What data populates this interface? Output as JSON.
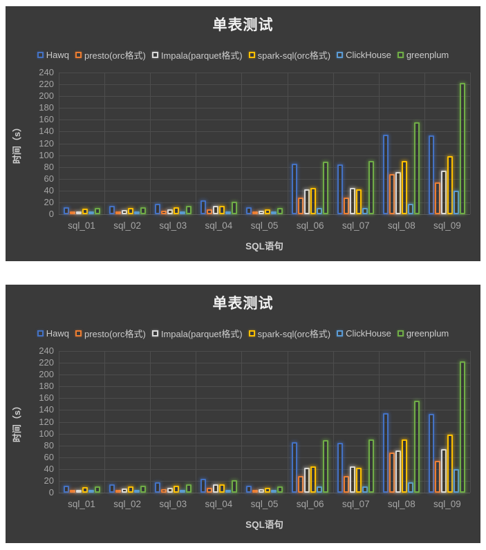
{
  "page": {
    "background": "#FFFFFF",
    "panel_background": "#3A3A3A"
  },
  "chart_data": [
    {
      "type": "bar",
      "title": "单表测试",
      "xlabel": "SQL语句",
      "ylabel": "时间（s）",
      "categories": [
        "sql_01",
        "sql_02",
        "sql_03",
        "sql_04",
        "sql_05",
        "sql_06",
        "sql_07",
        "sql_08",
        "sql_09"
      ],
      "series": [
        {
          "name": "Hawq",
          "color": "#4472C4",
          "values": [
            12,
            14,
            18,
            24,
            12,
            86,
            84,
            135,
            134
          ]
        },
        {
          "name": "presto(orc格式)",
          "color": "#ED7D31",
          "values": [
            4,
            5,
            6,
            8,
            3,
            28,
            28,
            68,
            54
          ]
        },
        {
          "name": "Impala(parquet格式)",
          "color": "#D9D9D9",
          "values": [
            5,
            7,
            8,
            14,
            6,
            42,
            44,
            72,
            74
          ]
        },
        {
          "name": "spark-sql(orc格式)",
          "color": "#FFC000",
          "values": [
            9,
            11,
            12,
            14,
            8,
            44,
            42,
            90,
            98
          ]
        },
        {
          "name": "ClickHouse",
          "color": "#5B9BD5",
          "values": [
            4,
            5,
            4,
            3,
            5,
            11,
            10,
            18,
            40
          ]
        },
        {
          "name": "greenplum",
          "color": "#70AD47",
          "values": [
            11,
            12,
            14,
            21,
            10,
            89,
            90,
            156,
            222
          ]
        }
      ],
      "ylim": [
        0,
        240
      ],
      "ytick_step": 20,
      "grid": true,
      "legend_position": "top",
      "background": "#3A3A3A"
    },
    {
      "type": "bar",
      "title": "单表测试",
      "xlabel": "SQL语句",
      "ylabel": "时间（s）",
      "categories": [
        "sql_01",
        "sql_02",
        "sql_03",
        "sql_04",
        "sql_05",
        "sql_06",
        "sql_07",
        "sql_08",
        "sql_09"
      ],
      "series": [
        {
          "name": "Hawq",
          "color": "#4472C4",
          "values": [
            12,
            14,
            18,
            24,
            12,
            86,
            84,
            135,
            134
          ]
        },
        {
          "name": "presto(orc格式)",
          "color": "#ED7D31",
          "values": [
            4,
            5,
            6,
            8,
            3,
            28,
            28,
            68,
            54
          ]
        },
        {
          "name": "Impala(parquet格式)",
          "color": "#D9D9D9",
          "values": [
            5,
            7,
            8,
            14,
            6,
            42,
            44,
            72,
            74
          ]
        },
        {
          "name": "spark-sql(orc格式)",
          "color": "#FFC000",
          "values": [
            9,
            11,
            12,
            14,
            8,
            44,
            42,
            90,
            98
          ]
        },
        {
          "name": "ClickHouse",
          "color": "#5B9BD5",
          "values": [
            4,
            5,
            4,
            3,
            5,
            11,
            10,
            18,
            40
          ]
        },
        {
          "name": "greenplum",
          "color": "#70AD47",
          "values": [
            11,
            12,
            14,
            21,
            10,
            89,
            90,
            156,
            222
          ]
        }
      ],
      "ylim": [
        0,
        240
      ],
      "ytick_step": 20,
      "grid": true,
      "legend_position": "top",
      "background": "#3A3A3A"
    }
  ]
}
